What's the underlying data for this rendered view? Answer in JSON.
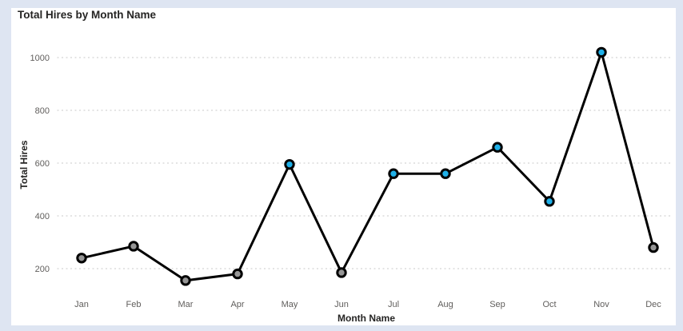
{
  "visual": {
    "title": "Total Hires by Month Name"
  },
  "colors": {
    "page_background": "#dee5f2",
    "card_background": "#ffffff",
    "line": "#000000",
    "marker_gray": "#969696",
    "marker_blue": "#1fb0e8",
    "gridline": "#d2d2d2",
    "tick_text": "#605e5c",
    "title_text": "#252423"
  },
  "chart_data": {
    "type": "line",
    "title": "Total Hires by Month Name",
    "xlabel": "Month Name",
    "ylabel": "Total Hires",
    "categories": [
      "Jan",
      "Feb",
      "Mar",
      "Apr",
      "May",
      "Jun",
      "Jul",
      "Aug",
      "Sep",
      "Oct",
      "Nov",
      "Dec"
    ],
    "values": [
      240,
      285,
      155,
      180,
      595,
      185,
      560,
      560,
      660,
      455,
      1020,
      280
    ],
    "point_colors": [
      "#969696",
      "#969696",
      "#969696",
      "#969696",
      "#1fb0e8",
      "#969696",
      "#1fb0e8",
      "#1fb0e8",
      "#1fb0e8",
      "#1fb0e8",
      "#1fb0e8",
      "#969696"
    ],
    "line_color": "#000000",
    "yticks": [
      200,
      400,
      600,
      800,
      1000
    ],
    "ylim": [
      100,
      1080
    ],
    "grid": "dotted-horizontal",
    "legend": "none"
  }
}
